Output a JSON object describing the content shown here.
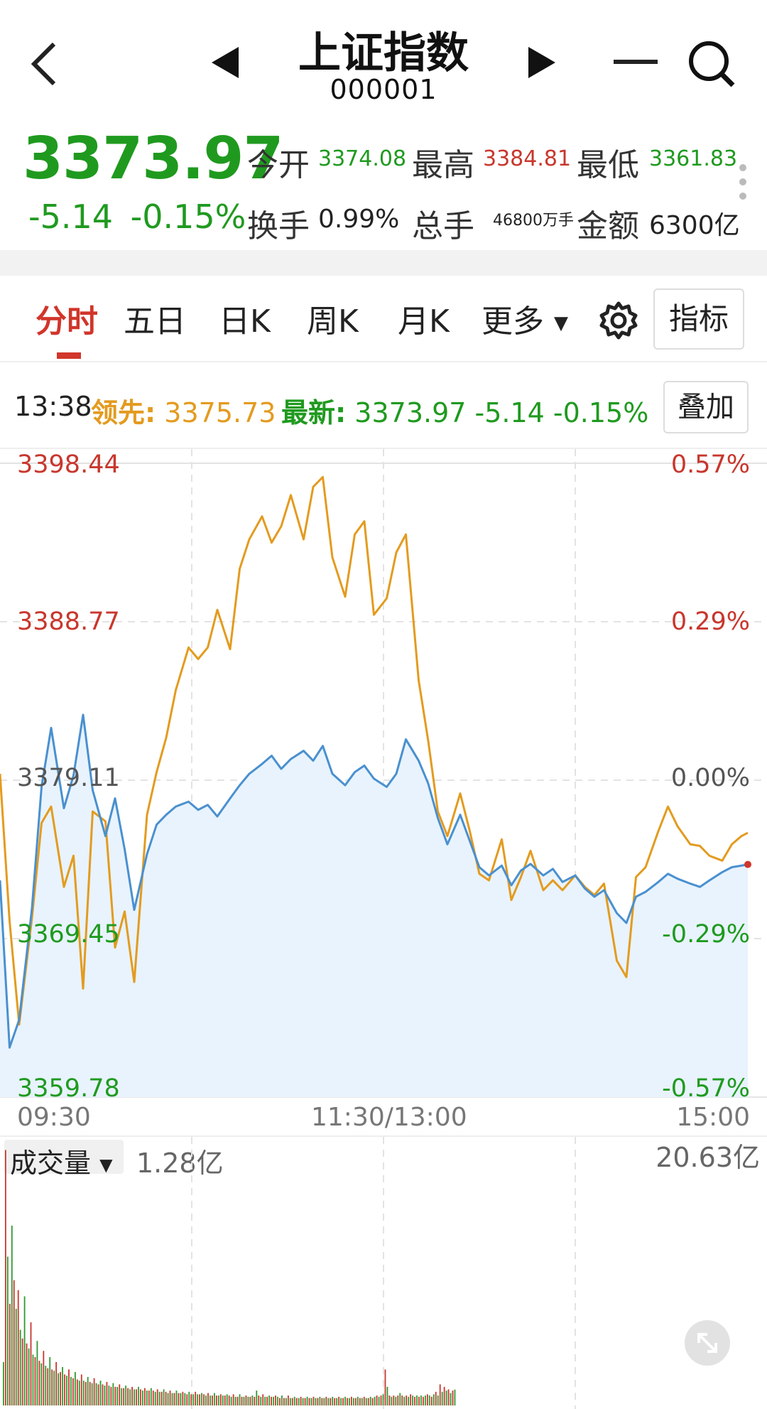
{
  "header": {
    "title": "上证指数",
    "code": "000001"
  },
  "quote": {
    "price": "3373.97",
    "change": "-5.14",
    "change_pct": "-0.15%",
    "stats": [
      {
        "label": "今开",
        "value": "3374.08",
        "color": "green"
      },
      {
        "label": "最高",
        "value": "3384.81",
        "color": "red"
      },
      {
        "label": "最低",
        "value": "3361.83",
        "color": "green"
      },
      {
        "label": "换手",
        "value": "0.99%",
        "color": "dark"
      },
      {
        "label": "总手",
        "value": "46800万手",
        "color": "dark"
      },
      {
        "label": "金额",
        "value": "6300亿",
        "color": "dark"
      }
    ]
  },
  "tabs": [
    "分时",
    "五日",
    "日K",
    "周K",
    "月K",
    "更多"
  ],
  "active_tab": "分时",
  "indicator_button": "指标",
  "info": {
    "time": "13:38",
    "lead_label": "领先:",
    "lead_value": "3375.73",
    "latest_label": "最新:",
    "latest_value": "3373.97 -5.14 -0.15%",
    "overlay_button": "叠加"
  },
  "chart_data": {
    "type": "line",
    "title": "",
    "y_ticks": [
      "3398.44",
      "3388.77",
      "3379.11",
      "3369.45",
      "3359.78"
    ],
    "pct_ticks": [
      "0.57%",
      "0.29%",
      "0.00%",
      "-0.29%",
      "-0.57%"
    ],
    "x_ticks": [
      "09:30",
      "11:30/13:00",
      "15:00"
    ],
    "ylim": [
      3359.78,
      3398.44
    ],
    "prev_close": 3379.11,
    "sessions_minutes": 240,
    "series": [
      {
        "name": "领先",
        "color": "#e39b1f",
        "x": [
          0,
          3,
          6,
          10,
          13,
          16,
          20,
          23,
          26,
          29,
          33,
          36,
          39,
          42,
          46,
          49,
          52,
          55,
          59,
          62,
          65,
          68,
          72,
          75,
          78,
          82,
          85,
          88,
          91,
          95,
          98,
          101,
          104,
          108,
          111,
          114,
          117,
          121,
          124,
          127,
          131,
          134,
          137,
          140,
          144,
          147,
          150,
          153,
          157,
          160,
          163,
          166,
          170,
          173,
          176,
          180,
          183,
          186,
          189,
          193,
          196,
          199,
          202,
          206,
          209,
          212,
          216,
          219,
          222,
          226,
          229,
          232,
          234
        ],
        "y": [
          3379.5,
          3370.5,
          3364.2,
          3370.7,
          3376.5,
          3377.5,
          3372.6,
          3374.5,
          3366.4,
          3377.2,
          3376.6,
          3368.9,
          3371.1,
          3366.8,
          3377.0,
          3379.6,
          3381.7,
          3384.6,
          3387.2,
          3386.5,
          3387.2,
          3389.5,
          3387.1,
          3392.0,
          3393.8,
          3395.2,
          3393.6,
          3394.6,
          3396.5,
          3393.8,
          3397.0,
          3397.6,
          3392.7,
          3390.3,
          3394.1,
          3394.9,
          3389.2,
          3390.2,
          3393.0,
          3394.1,
          3385.2,
          3381.5,
          3377.2,
          3375.7,
          3378.3,
          3376.0,
          3373.4,
          3373.0,
          3375.5,
          3371.8,
          3373.2,
          3374.8,
          3372.4,
          3373.0,
          3372.4,
          3373.3,
          3372.6,
          3372.1,
          3372.8,
          3368.1,
          3367.1,
          3373.2,
          3373.8,
          3376.0,
          3377.5,
          3376.3,
          3375.2,
          3375.1,
          3374.5,
          3374.2,
          3375.2,
          3375.7,
          3375.9
        ]
      },
      {
        "name": "最新",
        "color": "#4a90cf",
        "x": [
          0,
          3,
          6,
          10,
          13,
          16,
          20,
          23,
          26,
          29,
          33,
          36,
          39,
          42,
          46,
          49,
          52,
          55,
          59,
          62,
          65,
          68,
          72,
          75,
          78,
          82,
          85,
          88,
          91,
          95,
          98,
          101,
          104,
          108,
          111,
          114,
          117,
          121,
          124,
          127,
          131,
          134,
          137,
          140,
          144,
          147,
          150,
          153,
          157,
          160,
          163,
          166,
          170,
          173,
          176,
          180,
          183,
          186,
          189,
          193,
          196,
          199,
          202,
          206,
          209,
          212,
          216,
          219,
          222,
          226,
          229,
          232,
          234
        ],
        "y": [
          3373.0,
          3362.8,
          3364.5,
          3371.3,
          3378.7,
          3382.3,
          3377.4,
          3379.4,
          3383.1,
          3378.5,
          3375.7,
          3378.0,
          3374.9,
          3371.2,
          3374.6,
          3376.4,
          3377.0,
          3377.5,
          3377.8,
          3377.3,
          3377.6,
          3376.9,
          3378.0,
          3378.8,
          3379.5,
          3380.1,
          3380.6,
          3379.8,
          3380.4,
          3380.9,
          3380.3,
          3381.2,
          3379.5,
          3378.8,
          3379.6,
          3380.0,
          3379.2,
          3378.7,
          3379.5,
          3381.6,
          3380.3,
          3378.9,
          3376.8,
          3375.2,
          3377.0,
          3375.4,
          3373.8,
          3373.3,
          3373.9,
          3372.7,
          3373.6,
          3374.0,
          3373.3,
          3373.7,
          3372.9,
          3373.3,
          3372.5,
          3372.0,
          3372.4,
          3371.0,
          3370.4,
          3372.0,
          3372.3,
          3372.9,
          3373.4,
          3373.1,
          3372.8,
          3372.6,
          3373.0,
          3373.5,
          3373.8,
          3373.9,
          3373.97
        ]
      }
    ]
  },
  "volume": {
    "label": "成交量",
    "current": "1.28亿",
    "max_label": "20.63亿",
    "max": 20.63,
    "bars": [
      3.5,
      20.6,
      12.0,
      8.2,
      14.5,
      10.1,
      7.8,
      9.3,
      6.1,
      5.4,
      8.8,
      5.0,
      4.6,
      6.7,
      4.1,
      3.9,
      5.2,
      3.6,
      3.4,
      4.4,
      3.2,
      3.0,
      3.9,
      2.9,
      2.8,
      3.5,
      2.6,
      2.7,
      3.1,
      2.5,
      2.4,
      2.9,
      2.3,
      2.2,
      2.7,
      2.1,
      2.0,
      2.5,
      2.0,
      1.9,
      2.3,
      1.9,
      1.8,
      2.2,
      1.8,
      1.7,
      2.0,
      1.7,
      1.6,
      1.9,
      1.6,
      1.5,
      1.8,
      1.5,
      1.5,
      1.7,
      1.4,
      1.4,
      1.6,
      1.4,
      1.3,
      1.5,
      1.3,
      1.3,
      1.5,
      1.3,
      1.2,
      1.4,
      1.2,
      1.2,
      1.4,
      1.2,
      1.1,
      1.3,
      1.1,
      1.1,
      1.3,
      1.1,
      1.0,
      1.2,
      1.0,
      1.0,
      1.2,
      1.0,
      1.0,
      1.1,
      1.0,
      0.9,
      1.1,
      0.9,
      0.9,
      1.1,
      0.9,
      0.9,
      1.0,
      0.9,
      0.8,
      1.0,
      0.8,
      0.8,
      1.0,
      0.8,
      0.8,
      0.9,
      0.8,
      0.8,
      0.9,
      0.8,
      0.7,
      0.9,
      0.7,
      0.7,
      0.9,
      0.7,
      0.7,
      0.8,
      0.7,
      0.7,
      0.8,
      0.7,
      1.2,
      0.8,
      0.7,
      0.9,
      0.7,
      0.7,
      0.8,
      0.7,
      0.7,
      0.8,
      0.7,
      0.6,
      0.8,
      0.6,
      0.6,
      0.8,
      0.6,
      0.6,
      0.7,
      0.6,
      0.6,
      0.7,
      0.6,
      0.6,
      0.7,
      0.6,
      0.6,
      0.7,
      0.6,
      0.6,
      0.7,
      0.6,
      0.6,
      0.7,
      0.6,
      0.6,
      0.7,
      0.6,
      0.6,
      0.7,
      0.6,
      0.6,
      0.7,
      0.6,
      0.6,
      0.7,
      0.6,
      0.6,
      0.7,
      0.6,
      0.6,
      0.7,
      0.6,
      0.6,
      0.7,
      0.6,
      0.7,
      0.8,
      0.7,
      0.8,
      0.9,
      2.9,
      1.5,
      0.8,
      0.7,
      0.8,
      0.7,
      0.8,
      1.0,
      0.8,
      0.7,
      0.8,
      0.7,
      0.9,
      0.8,
      0.7,
      0.8,
      0.7,
      0.8,
      0.7,
      0.8,
      0.9,
      0.8,
      0.7,
      0.9,
      1.1,
      0.8,
      1.7,
      1.1,
      1.5,
      1.2,
      1.3,
      1.0,
      1.2,
      1.28
    ],
    "bar_colors_pattern": "alternating"
  }
}
